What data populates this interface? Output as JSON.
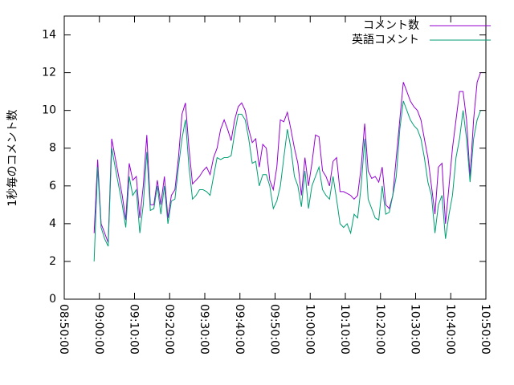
{
  "chart_data": {
    "type": "line",
    "ylabel": "1秒毎のコメント数",
    "x": [
      "08:58:30",
      "08:59:30",
      "09:00:30",
      "09:01:30",
      "09:02:30",
      "09:03:30",
      "09:04:30",
      "09:05:30",
      "09:06:30",
      "09:07:30",
      "09:08:30",
      "09:09:30",
      "09:10:30",
      "09:11:30",
      "09:12:30",
      "09:13:30",
      "09:14:30",
      "09:15:30",
      "09:16:30",
      "09:17:30",
      "09:18:30",
      "09:19:30",
      "09:20:30",
      "09:21:30",
      "09:22:30",
      "09:23:30",
      "09:24:30",
      "09:25:30",
      "09:26:30",
      "09:27:30",
      "09:28:30",
      "09:29:30",
      "09:30:30",
      "09:31:30",
      "09:32:30",
      "09:33:30",
      "09:34:30",
      "09:35:30",
      "09:36:30",
      "09:37:30",
      "09:38:30",
      "09:39:30",
      "09:40:30",
      "09:41:30",
      "09:42:30",
      "09:43:30",
      "09:44:30",
      "09:45:30",
      "09:46:30",
      "09:47:30",
      "09:48:30",
      "09:49:30",
      "09:50:30",
      "09:51:30",
      "09:52:30",
      "09:53:30",
      "09:54:30",
      "09:55:30",
      "09:56:30",
      "09:57:30",
      "09:58:30",
      "09:59:30",
      "10:00:30",
      "10:01:30",
      "10:02:30",
      "10:03:30",
      "10:04:30",
      "10:05:30",
      "10:06:30",
      "10:07:30",
      "10:08:30",
      "10:09:30",
      "10:10:30",
      "10:11:30",
      "10:12:30",
      "10:13:30",
      "10:14:30",
      "10:15:30",
      "10:16:30",
      "10:17:30",
      "10:18:30",
      "10:19:30",
      "10:20:30",
      "10:21:30",
      "10:22:30",
      "10:23:30",
      "10:24:30",
      "10:25:30",
      "10:26:30",
      "10:27:30",
      "10:28:30",
      "10:29:30",
      "10:30:30",
      "10:31:30",
      "10:32:30",
      "10:33:30",
      "10:34:30",
      "10:35:30",
      "10:36:30",
      "10:37:30",
      "10:38:30",
      "10:39:30",
      "10:40:30",
      "10:41:30",
      "10:42:30",
      "10:43:30",
      "10:44:30",
      "10:45:30",
      "10:46:30",
      "10:47:30",
      "10:48:30"
    ],
    "series": [
      {
        "name": "コメント数",
        "color": "#9400d3",
        "values": [
          3.5,
          7.4,
          4.0,
          3.5,
          3.0,
          8.5,
          7.5,
          6.5,
          5.5,
          4.2,
          7.2,
          6.3,
          6.5,
          4.3,
          6.0,
          8.7,
          5.0,
          5.0,
          6.3,
          5.0,
          6.5,
          4.3,
          5.5,
          5.8,
          7.5,
          9.8,
          10.4,
          8.0,
          6.1,
          6.3,
          6.5,
          6.8,
          7.0,
          6.6,
          7.5,
          8.0,
          9.0,
          9.5,
          9.0,
          8.4,
          9.5,
          10.2,
          10.4,
          10.0,
          9.0,
          8.3,
          8.5,
          7.0,
          8.2,
          8.0,
          6.3,
          5.8,
          7.0,
          9.5,
          9.4,
          9.9,
          9.0,
          8.0,
          7.2,
          5.5,
          7.5,
          6.0,
          7.2,
          8.7,
          8.6,
          6.8,
          6.5,
          6.0,
          7.3,
          7.5,
          5.7,
          5.7,
          5.6,
          5.5,
          5.3,
          5.5,
          7.0,
          9.3,
          6.8,
          6.4,
          6.5,
          6.2,
          7.0,
          5.0,
          4.8,
          5.5,
          7.5,
          9.5,
          11.5,
          11.0,
          10.5,
          10.2,
          10.0,
          9.5,
          8.5,
          7.5,
          6.0,
          4.5,
          7.0,
          7.2,
          4.0,
          6.0,
          8.0,
          9.5,
          11.0,
          11.0,
          9.5,
          6.5,
          9.5,
          11.5,
          12.0
        ]
      },
      {
        "name": "英語コメント",
        "color": "#009e73",
        "values": [
          2.0,
          7.0,
          3.8,
          3.2,
          2.8,
          8.0,
          7.0,
          6.0,
          5.0,
          3.8,
          6.5,
          5.5,
          5.8,
          3.5,
          5.0,
          7.8,
          4.7,
          4.8,
          6.0,
          4.5,
          6.0,
          4.0,
          5.2,
          5.3,
          7.0,
          8.5,
          9.5,
          7.0,
          5.3,
          5.5,
          5.8,
          5.8,
          5.7,
          5.5,
          6.5,
          7.5,
          7.4,
          7.5,
          7.5,
          7.6,
          8.8,
          9.8,
          9.8,
          9.5,
          8.5,
          7.2,
          7.3,
          6.0,
          6.6,
          6.6,
          6.0,
          4.8,
          5.2,
          6.0,
          7.5,
          9.0,
          8.0,
          6.5,
          6.0,
          4.9,
          6.8,
          4.8,
          6.0,
          6.5,
          7.0,
          5.8,
          5.5,
          5.3,
          6.5,
          5.3,
          4.0,
          3.8,
          4.0,
          3.5,
          4.5,
          4.3,
          6.0,
          8.5,
          5.3,
          4.8,
          4.3,
          4.2,
          6.0,
          4.5,
          4.6,
          5.5,
          6.5,
          9.0,
          10.5,
          10.0,
          9.5,
          9.2,
          9.0,
          8.5,
          7.5,
          6.2,
          5.5,
          3.5,
          5.0,
          5.5,
          3.2,
          4.5,
          5.5,
          7.5,
          8.5,
          10.0,
          8.5,
          6.2,
          8.5,
          9.5,
          10.0
        ]
      }
    ],
    "xlim": [
      "08:50:00",
      "10:50:00"
    ],
    "xticks": [
      "08:50:00",
      "09:00:00",
      "09:10:00",
      "09:20:00",
      "09:30:00",
      "09:40:00",
      "09:50:00",
      "10:00:00",
      "10:10:00",
      "10:20:00",
      "10:30:00",
      "10:40:00",
      "10:50:00"
    ],
    "ylim": [
      0,
      15
    ],
    "yticks": [
      0,
      2,
      4,
      6,
      8,
      10,
      12,
      14
    ],
    "legend": "top-right"
  }
}
